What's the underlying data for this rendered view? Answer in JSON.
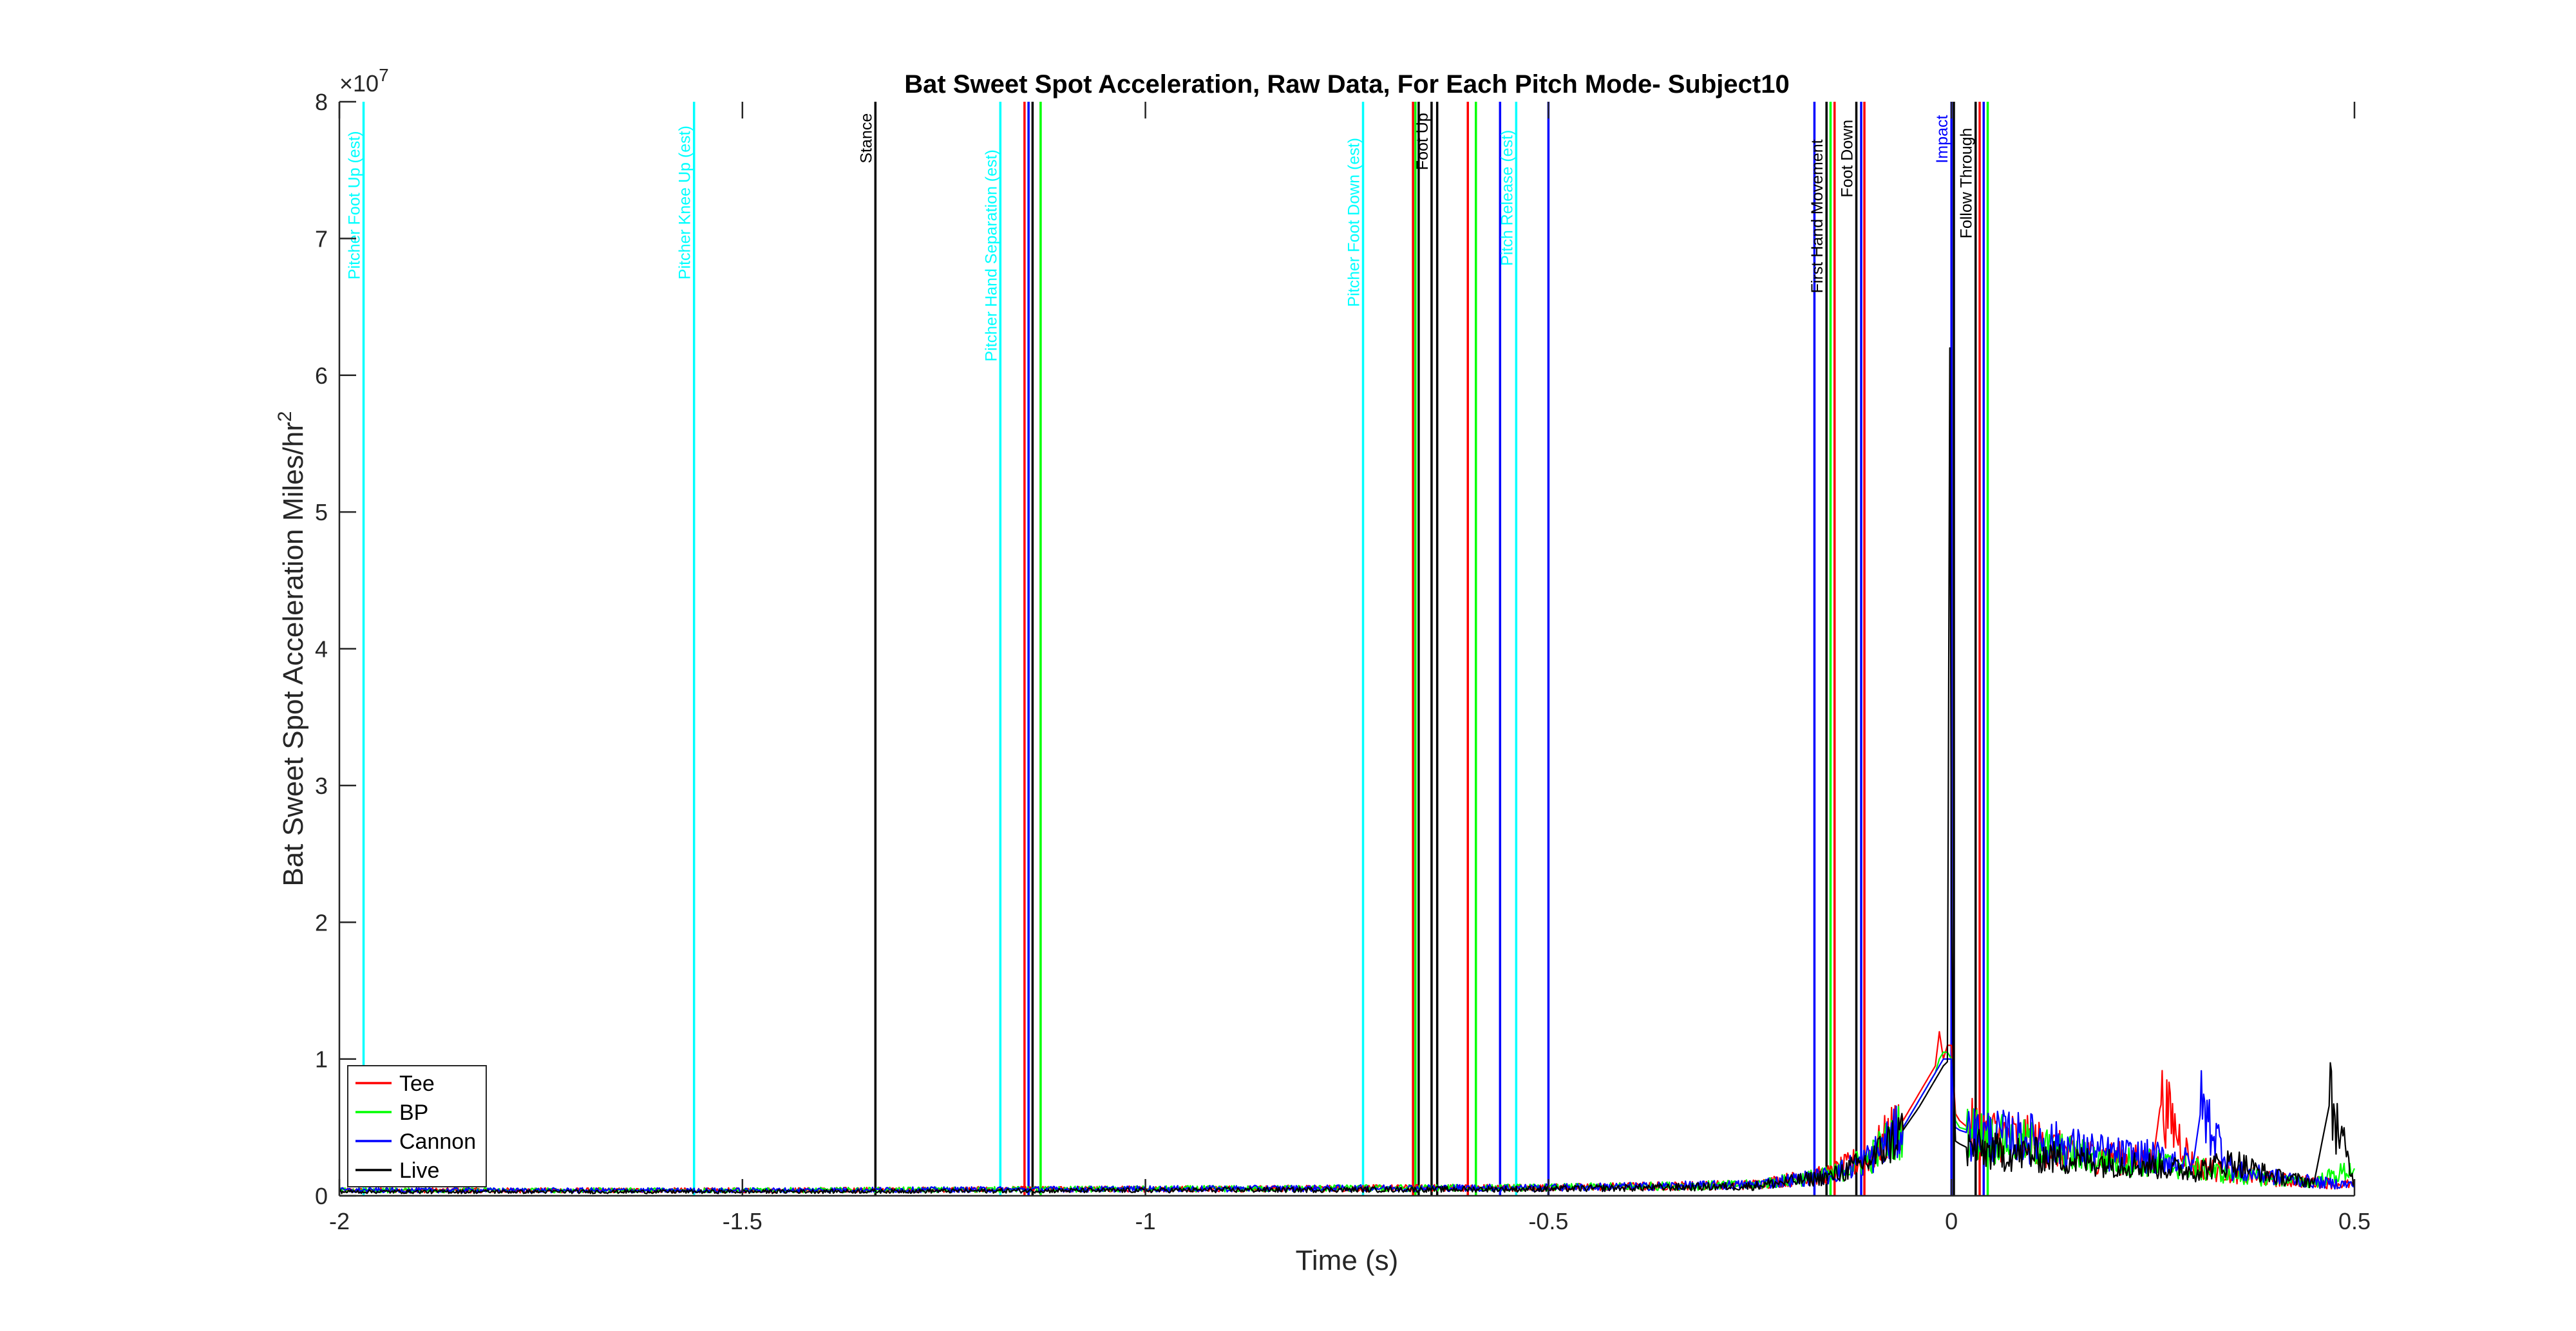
{
  "chart_data": {
    "type": "line",
    "title": "Bat Sweet Spot Acceleration, Raw Data, For Each Pitch Mode- Subject10",
    "xlabel": "Time (s)",
    "ylabel": "Bat Sweet Spot Acceleration Miles/hr",
    "ylabel_superscript": "2",
    "y_exponent_base": "×10",
    "y_exponent_power": "7",
    "xlim": [
      -2,
      0.5
    ],
    "ylim": [
      0,
      80000000.0
    ],
    "x_ticks": [
      -2,
      -1.5,
      -1,
      -0.5,
      0,
      0.5
    ],
    "x_tick_labels": [
      "-2",
      "-1.5",
      "-1",
      "-0.5",
      "0",
      "0.5"
    ],
    "y_ticks": [
      0,
      10000000.0,
      20000000.0,
      30000000.0,
      40000000.0,
      50000000.0,
      60000000.0,
      70000000.0,
      80000000.0
    ],
    "y_tick_labels": [
      "0",
      "1",
      "2",
      "3",
      "4",
      "5",
      "6",
      "7",
      "8"
    ],
    "grid": false,
    "legend_position": "bottom-left",
    "series": [
      {
        "name": "Tee",
        "color": "#ff0000",
        "x": [
          -2,
          -1.5,
          -1,
          -0.5,
          -0.25,
          -0.15,
          -0.1,
          -0.06,
          -0.04,
          -0.03,
          -0.02,
          -0.015,
          -0.01,
          -0.005,
          0,
          0.005,
          0.01,
          0.02,
          0.05,
          0.1,
          0.15,
          0.2,
          0.25,
          0.26,
          0.3,
          0.35,
          0.4,
          0.45,
          0.5
        ],
        "y": [
          400000,
          400000,
          500000,
          600000,
          800000,
          1600000,
          3000000,
          5500000,
          7500000,
          8500000,
          9500000,
          12000000,
          10000000,
          11000000,
          11000000,
          6000000,
          5500000,
          5000000,
          4500000,
          4000000,
          3000000,
          2800000,
          2500000,
          7000000,
          2200000,
          1600000,
          1200000,
          1000000,
          800000
        ]
      },
      {
        "name": "BP",
        "color": "#00ff00",
        "x": [
          -2,
          -1.5,
          -1,
          -0.5,
          -0.25,
          -0.15,
          -0.1,
          -0.06,
          -0.04,
          -0.03,
          -0.02,
          -0.015,
          -0.01,
          -0.005,
          0,
          0.005,
          0.01,
          0.02,
          0.05,
          0.1,
          0.15,
          0.2,
          0.25,
          0.3,
          0.35,
          0.4,
          0.45,
          0.5
        ],
        "y": [
          400000,
          400000,
          500000,
          600000,
          800000,
          1500000,
          2800000,
          5000000,
          7000000,
          8000000,
          9000000,
          10000000,
          10500000,
          10500000,
          10000000,
          5500000,
          5000000,
          4800000,
          4200000,
          3800000,
          3000000,
          2600000,
          2400000,
          2000000,
          1500000,
          1200000,
          1000000,
          2000000
        ]
      },
      {
        "name": "Cannon",
        "color": "#0000ff",
        "x": [
          -2,
          -1.5,
          -1,
          -0.5,
          -0.25,
          -0.15,
          -0.1,
          -0.06,
          -0.04,
          -0.03,
          -0.02,
          -0.015,
          -0.01,
          -0.005,
          0,
          0.005,
          0.01,
          0.02,
          0.05,
          0.1,
          0.15,
          0.2,
          0.25,
          0.3,
          0.31,
          0.35,
          0.4,
          0.45,
          0.5
        ],
        "y": [
          400000,
          400000,
          500000,
          600000,
          800000,
          1500000,
          2800000,
          5000000,
          7000000,
          8000000,
          9000000,
          9500000,
          10000000,
          10000000,
          10000000,
          5000000,
          4800000,
          4600000,
          4400000,
          4200000,
          3500000,
          3000000,
          2800000,
          2400000,
          6500000,
          1800000,
          1400000,
          1000000,
          800000
        ]
      },
      {
        "name": "Live",
        "color": "#000000",
        "x": [
          -2,
          -1.5,
          -1,
          -0.5,
          -0.25,
          -0.15,
          -0.1,
          -0.06,
          -0.04,
          -0.03,
          -0.02,
          -0.015,
          -0.01,
          -0.005,
          -0.002,
          0,
          0.002,
          0.005,
          0.01,
          0.02,
          0.05,
          0.1,
          0.15,
          0.2,
          0.25,
          0.3,
          0.35,
          0.4,
          0.45,
          0.47,
          0.5
        ],
        "y": [
          300000,
          300000,
          400000,
          500000,
          700000,
          1400000,
          2600000,
          4800000,
          6500000,
          7500000,
          8500000,
          9000000,
          9500000,
          9800000,
          62000000,
          21000000,
          10000000,
          4000000,
          3800000,
          3500000,
          3200000,
          3000000,
          2600000,
          2400000,
          2200000,
          1800000,
          2500000,
          1400000,
          1000000,
          7000000,
          800000
        ]
      }
    ],
    "event_lines": [
      {
        "x": -1.97,
        "color": "#00ffff",
        "label": "Pitcher Foot Up (est)",
        "label_top": 67000000.0
      },
      {
        "x": -1.56,
        "color": "#00ffff",
        "label": "Pitcher Knee Up (est)",
        "label_top": 67000000.0
      },
      {
        "x": -1.335,
        "color": "#000000",
        "label": "Stance",
        "label_top": 75500000.0
      },
      {
        "x": -1.18,
        "color": "#00ffff",
        "label": "Pitcher Hand Separation (est)",
        "label_top": 61000000.0
      },
      {
        "x": -1.15,
        "color": "#ff0000",
        "label": ""
      },
      {
        "x": -1.145,
        "color": "#0000ff",
        "label": ""
      },
      {
        "x": -1.14,
        "color": "#000000",
        "label": ""
      },
      {
        "x": -1.13,
        "color": "#00ff00",
        "label": ""
      },
      {
        "x": -0.73,
        "color": "#00ffff",
        "label": "Pitcher Foot Down (est)",
        "label_top": 65000000.0
      },
      {
        "x": -0.668,
        "color": "#ff0000",
        "label": ""
      },
      {
        "x": -0.665,
        "color": "#00ff00",
        "label": ""
      },
      {
        "x": -0.661,
        "color": "#000000",
        "label": ""
      },
      {
        "x": -0.645,
        "color": "#000000",
        "label": "Foot Up",
        "label_top": 75000000.0
      },
      {
        "x": -0.638,
        "color": "#000000",
        "label": ""
      },
      {
        "x": -0.6,
        "color": "#ff0000",
        "label": ""
      },
      {
        "x": -0.59,
        "color": "#00ff00",
        "label": ""
      },
      {
        "x": -0.56,
        "color": "#0000ff",
        "label": ""
      },
      {
        "x": -0.54,
        "color": "#00ffff",
        "label": "Pitch Release (est)",
        "label_top": 68000000.0
      },
      {
        "x": -0.5,
        "color": "#0000ff",
        "label": ""
      },
      {
        "x": -0.17,
        "color": "#0000ff",
        "label": ""
      },
      {
        "x": -0.155,
        "color": "#000000",
        "label": "First Hand Movement",
        "label_top": 66000000.0
      },
      {
        "x": -0.15,
        "color": "#00ff00",
        "label": ""
      },
      {
        "x": -0.145,
        "color": "#ff0000",
        "label": ""
      },
      {
        "x": -0.118,
        "color": "#000000",
        "label": "Foot Down",
        "label_top": 73000000.0
      },
      {
        "x": -0.112,
        "color": "#0000ff",
        "label": ""
      },
      {
        "x": -0.108,
        "color": "#ff0000",
        "label": ""
      },
      {
        "x": 0.0,
        "color": "#0000ff",
        "label": "Impact",
        "label_top": 75500000.0
      },
      {
        "x": 0.003,
        "color": "#000000",
        "label": ""
      },
      {
        "x": 0.03,
        "color": "#000000",
        "label": "Follow Through",
        "label_top": 70000000.0
      },
      {
        "x": 0.035,
        "color": "#ff0000",
        "label": ""
      },
      {
        "x": 0.04,
        "color": "#0000ff",
        "label": ""
      },
      {
        "x": 0.045,
        "color": "#00ff00",
        "label": ""
      }
    ]
  }
}
